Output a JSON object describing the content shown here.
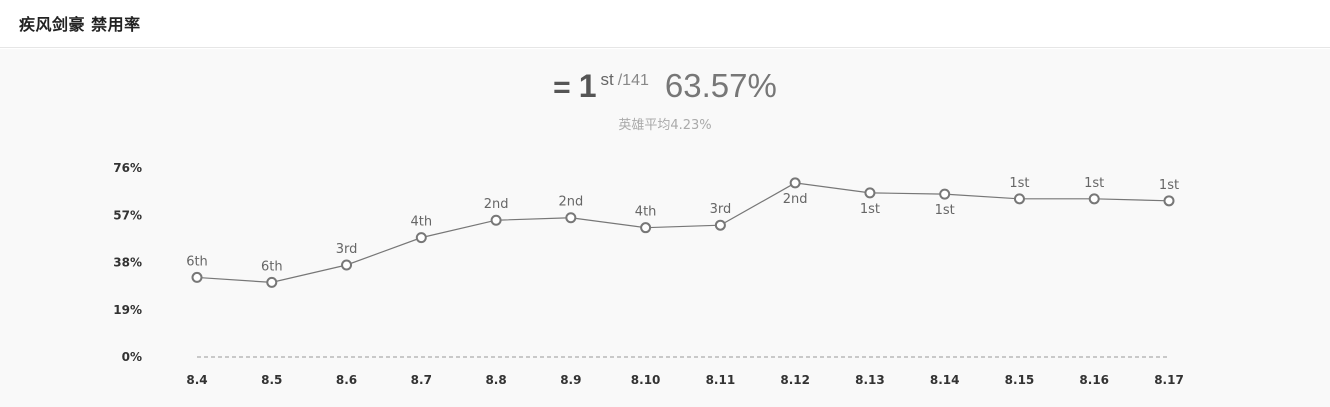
{
  "header": {
    "title": "疾风剑豪 禁用率"
  },
  "summary": {
    "rank_icon": "equals-icon",
    "rank_icon_glyph": "=",
    "rank": "1",
    "rank_suffix": "st",
    "rank_total": "/141",
    "rate": "63.57%",
    "average": "英雄平均4.23%"
  },
  "colors": {
    "line": "#777777",
    "marker_fill": "#ffffff",
    "baseline": "#999999"
  },
  "chart_data": {
    "type": "line",
    "categories": [
      "8.4",
      "8.5",
      "8.6",
      "8.7",
      "8.8",
      "8.9",
      "8.10",
      "8.11",
      "8.12",
      "8.13",
      "8.14",
      "8.15",
      "8.16",
      "8.17"
    ],
    "series": [
      {
        "values": [
          32,
          30,
          37,
          48,
          55,
          56,
          52,
          53,
          70,
          66,
          65.5,
          63.6,
          63.6,
          62.8
        ],
        "rank_labels": [
          "6th",
          "6th",
          "3rd",
          "4th",
          "2nd",
          "2nd",
          "4th",
          "3rd",
          "2nd",
          "1st",
          "1st",
          "1st",
          "1st",
          "1st"
        ],
        "label_positions": [
          "above",
          "above",
          "above",
          "above",
          "above",
          "above",
          "above",
          "above",
          "below",
          "below",
          "below",
          "above",
          "above",
          "above"
        ]
      }
    ],
    "yticks": [
      0,
      19,
      38,
      57,
      76
    ],
    "ytick_labels": [
      "0%",
      "19%",
      "38%",
      "57%",
      "76%"
    ],
    "ylim": [
      0,
      76
    ],
    "grid": false,
    "legend": "none"
  }
}
